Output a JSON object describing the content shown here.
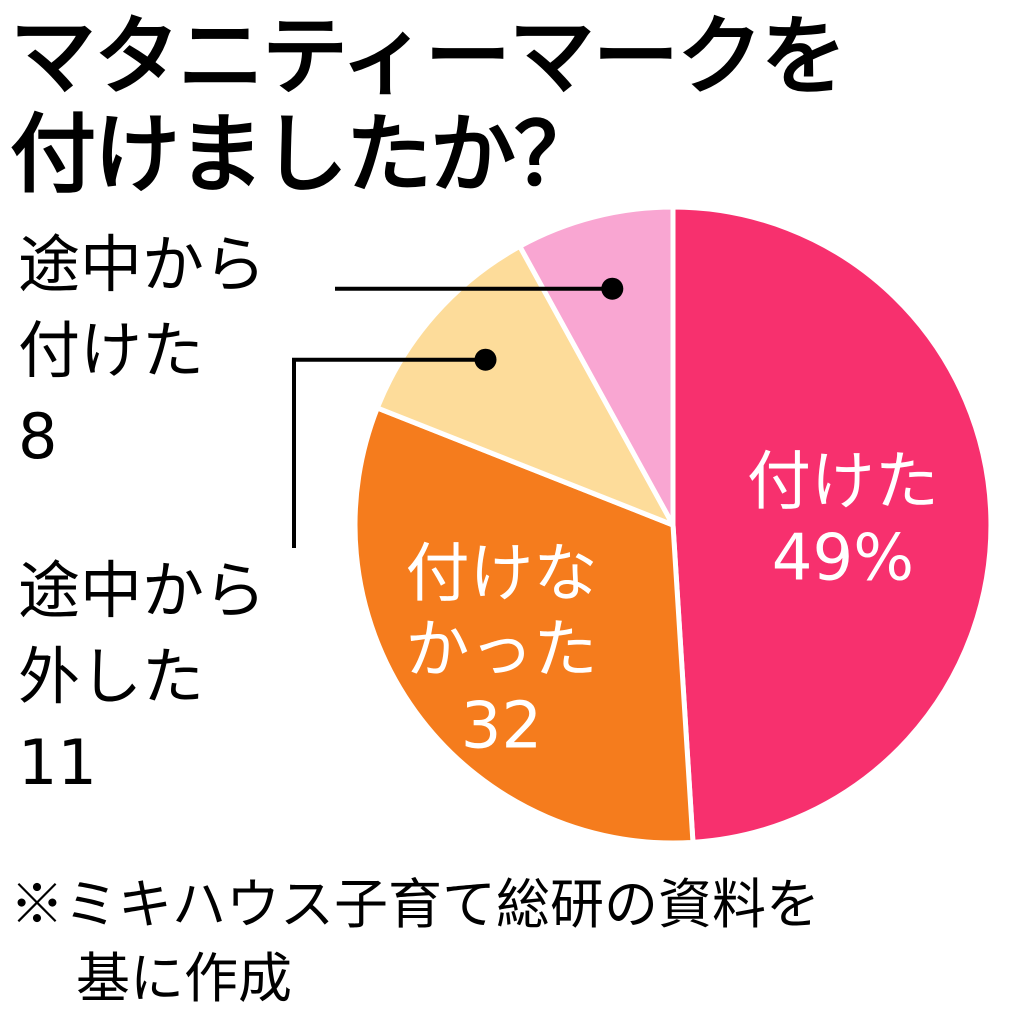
{
  "title": {
    "line1": "マタニティーマークを",
    "line2": "付けましたか？"
  },
  "note": {
    "line1": "※ミキハウス子育て総研の資料を",
    "line2": "基に作成"
  },
  "colors": {
    "attached": "#f7306e",
    "not_attached": "#f57c1d",
    "removed_midway": "#fddc9a",
    "attached_midway": "#f9a6d2",
    "separator": "#ffffff",
    "leader_line": "#000000"
  },
  "chart_data": {
    "type": "pie",
    "unit": "%",
    "start_angle_deg": 0,
    "direction": "clockwise",
    "slices": [
      {
        "key": "attached",
        "label_lines": [
          "付けた"
        ],
        "value_label": "49%",
        "value": 49,
        "label_inside": true
      },
      {
        "key": "not_attached",
        "label_lines": [
          "付けな",
          "かった"
        ],
        "value_label": "32",
        "value": 32,
        "label_inside": true
      },
      {
        "key": "removed_midway",
        "label_lines": [
          "途中から",
          "外した"
        ],
        "value_label": "11",
        "value": 11,
        "label_inside": false
      },
      {
        "key": "attached_midway",
        "label_lines": [
          "途中から",
          "付けた"
        ],
        "value_label": "8",
        "value": 8,
        "label_inside": false
      }
    ]
  }
}
